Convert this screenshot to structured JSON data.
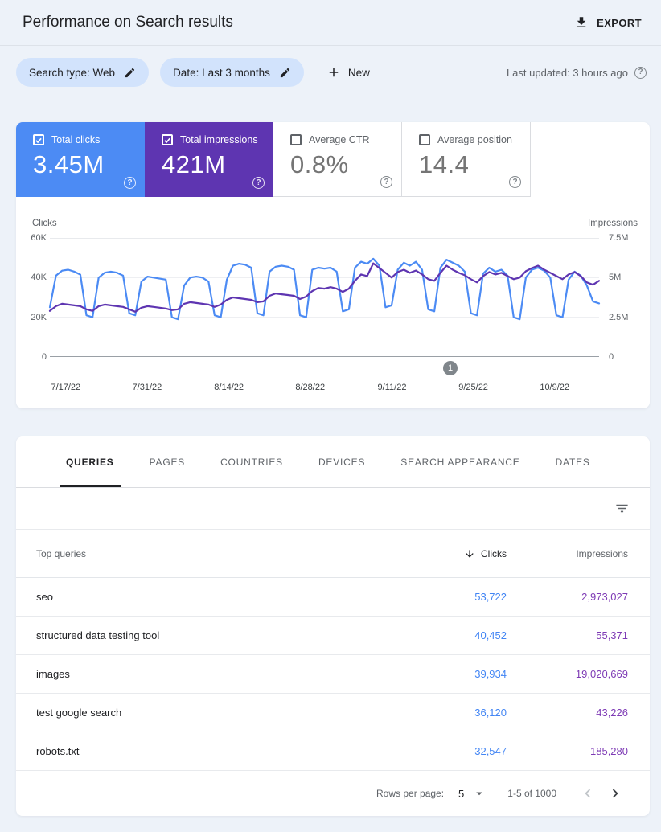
{
  "header": {
    "title": "Performance on Search results",
    "export_label": "EXPORT"
  },
  "filters": {
    "search_type_chip": "Search type: Web",
    "date_chip": "Date: Last 3 months",
    "new_label": "New",
    "last_updated": "Last updated: 3 hours ago"
  },
  "icons": {
    "help_glyph": "?"
  },
  "colors": {
    "chip-bg": "#d2e3fc",
    "table-clicks": "#4285f4",
    "table-impressions": "#7e3bb5"
  },
  "metrics": {
    "cards": [
      {
        "label": "Total clicks",
        "value": "3.45M",
        "checked": true,
        "color": "#4c8bf4"
      },
      {
        "label": "Total impressions",
        "value": "421M",
        "checked": true,
        "color": "#5e35b1"
      },
      {
        "label": "Average CTR",
        "value": "0.8%",
        "checked": false
      },
      {
        "label": "Average position",
        "value": "14.4",
        "checked": false
      }
    ]
  },
  "chart_data": {
    "type": "line",
    "granularity": "daily",
    "grid": true,
    "left_axis": {
      "label": "Clicks",
      "ticks": [
        "60K",
        "40K",
        "20K",
        "0"
      ],
      "max": 60000,
      "min": 0
    },
    "right_axis": {
      "label": "Impressions",
      "ticks": [
        "7.5M",
        "5M",
        "2.5M",
        "0"
      ],
      "max": 7500000,
      "min": 0
    },
    "x_ticks": [
      "7/17/22",
      "7/31/22",
      "8/14/22",
      "8/28/22",
      "9/11/22",
      "9/25/22",
      "10/9/22"
    ],
    "annotation": {
      "label": "1",
      "position_percent": 72.9
    },
    "series": [
      {
        "name": "Total clicks",
        "axis": "left",
        "color": "#4c8bf4",
        "values": [
          25000,
          41000,
          43500,
          44000,
          43000,
          41500,
          21000,
          20000,
          40000,
          42500,
          43000,
          42500,
          41000,
          22000,
          21000,
          38000,
          40500,
          40000,
          39500,
          39000,
          20000,
          19000,
          36000,
          40000,
          40500,
          40000,
          38000,
          21000,
          20000,
          39000,
          46000,
          47000,
          46500,
          45000,
          22000,
          21000,
          43000,
          45500,
          46000,
          45500,
          44000,
          21000,
          20000,
          44000,
          45000,
          44500,
          45000,
          43000,
          23000,
          24000,
          45000,
          48000,
          47000,
          49500,
          46000,
          25000,
          26000,
          44000,
          47500,
          46000,
          48000,
          44000,
          24000,
          23000,
          45000,
          49000,
          47500,
          46000,
          43000,
          22000,
          21000,
          42000,
          45000,
          43000,
          44000,
          41000,
          20000,
          19000,
          40000,
          44000,
          45000,
          43500,
          40000,
          21000,
          20000,
          39000,
          43000,
          41000,
          36000,
          28000,
          27000
        ]
      },
      {
        "name": "Total impressions",
        "axis": "right",
        "color": "#5e35b1",
        "values": [
          2900000,
          3200000,
          3350000,
          3300000,
          3250000,
          3200000,
          3000000,
          2900000,
          3200000,
          3300000,
          3250000,
          3200000,
          3150000,
          3000000,
          2850000,
          3100000,
          3200000,
          3150000,
          3100000,
          3050000,
          2950000,
          3000000,
          3350000,
          3450000,
          3400000,
          3350000,
          3300000,
          3150000,
          3300000,
          3600000,
          3750000,
          3700000,
          3650000,
          3600000,
          3450000,
          3500000,
          3850000,
          4000000,
          3950000,
          3900000,
          3850000,
          3650000,
          3800000,
          4150000,
          4350000,
          4300000,
          4400000,
          4300000,
          4100000,
          4300000,
          4800000,
          5200000,
          5100000,
          5900000,
          5600000,
          5300000,
          5000000,
          5350000,
          5500000,
          5300000,
          5450000,
          5200000,
          4900000,
          4800000,
          5300000,
          5750000,
          5500000,
          5300000,
          5150000,
          4900000,
          4700000,
          5100000,
          5350000,
          5200000,
          5300000,
          5100000,
          4900000,
          5000000,
          5400000,
          5600000,
          5750000,
          5500000,
          5300000,
          5100000,
          4900000,
          5200000,
          5350000,
          5100000,
          4700000,
          4550000,
          4800000
        ]
      }
    ]
  },
  "tabs": {
    "items": [
      "QUERIES",
      "PAGES",
      "COUNTRIES",
      "DEVICES",
      "SEARCH APPEARANCE",
      "DATES"
    ],
    "active_index": 0
  },
  "table": {
    "columns": {
      "query": "Top queries",
      "clicks": "Clicks",
      "impressions": "Impressions"
    },
    "sorted_by": "Clicks",
    "sort_direction": "desc",
    "rows": [
      {
        "query": "seo",
        "clicks": "53,722",
        "impressions": "2,973,027"
      },
      {
        "query": "structured data testing tool",
        "clicks": "40,452",
        "impressions": "55,371"
      },
      {
        "query": "images",
        "clicks": "39,934",
        "impressions": "19,020,669"
      },
      {
        "query": "test google search",
        "clicks": "36,120",
        "impressions": "43,226"
      },
      {
        "query": "robots.txt",
        "clicks": "32,547",
        "impressions": "185,280"
      }
    ]
  },
  "pagination": {
    "rows_per_page_label": "Rows per page:",
    "rows_per_page": "5",
    "range_label": "1-5 of 1000"
  }
}
